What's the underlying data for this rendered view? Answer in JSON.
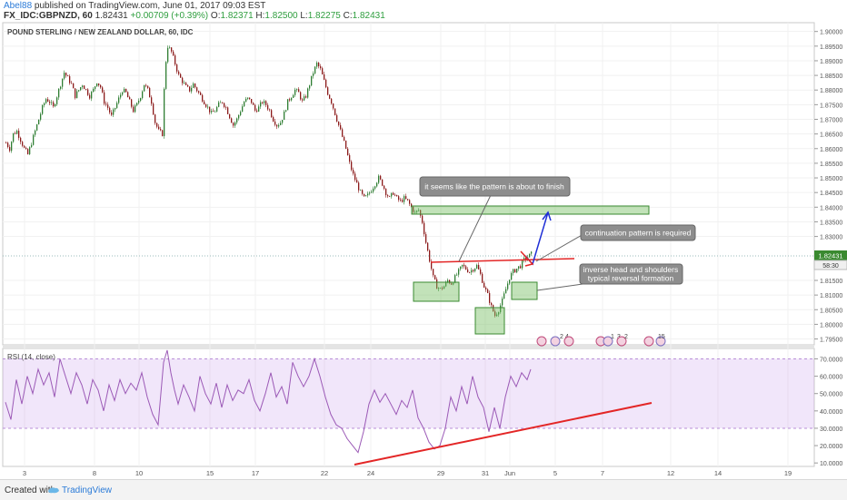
{
  "header": {
    "author": "Abel88",
    "published_text": "published on TradingView.com, June 01, 2017 09:03 EST",
    "symbol": "FX_IDC:GBPNZD, 60",
    "last": "1.82431",
    "change": "+0.00709 (+0.39%)",
    "o_label": "O:",
    "o": "1.82371",
    "h_label": "H:",
    "h": "1.82500",
    "l_label": "L:",
    "l": "1.82275",
    "c_label": "C:",
    "c": "1.82431"
  },
  "chart_data": [
    {
      "type": "candlestick",
      "title": "POUND STERLING / NEW ZEALAND DOLLAR, 60, IDC",
      "ylim": [
        1.793,
        1.903
      ],
      "y_ticks": [
        "1.90000",
        "1.89500",
        "1.89000",
        "1.88500",
        "1.88000",
        "1.87500",
        "1.87000",
        "1.86500",
        "1.86000",
        "1.85500",
        "1.85000",
        "1.84500",
        "1.84000",
        "1.83500",
        "1.83000",
        "1.81500",
        "1.81000",
        "1.80500",
        "1.80000",
        "1.79500"
      ],
      "price_labels": [
        "1.82431",
        "58:30"
      ],
      "x_ticks": [
        "3",
        "8",
        "10",
        "15",
        "17",
        "22",
        "24",
        "29",
        "31",
        "Jun",
        "5",
        "7",
        "12",
        "14",
        "19"
      ],
      "price_path": [
        [
          0,
          1.862
        ],
        [
          4,
          1.86
        ],
        [
          8,
          1.865
        ],
        [
          12,
          1.866
        ],
        [
          16,
          1.863
        ],
        [
          20,
          1.86
        ],
        [
          24,
          1.858
        ],
        [
          28,
          1.862
        ],
        [
          32,
          1.866
        ],
        [
          36,
          1.87
        ],
        [
          40,
          1.874
        ],
        [
          44,
          1.877
        ],
        [
          48,
          1.876
        ],
        [
          52,
          1.874
        ],
        [
          56,
          1.878
        ],
        [
          60,
          1.882
        ],
        [
          64,
          1.886
        ],
        [
          68,
          1.884
        ],
        [
          72,
          1.882
        ],
        [
          76,
          1.878
        ],
        [
          80,
          1.88
        ],
        [
          84,
          1.882
        ],
        [
          88,
          1.88
        ],
        [
          92,
          1.878
        ],
        [
          96,
          1.88
        ],
        [
          100,
          1.883
        ],
        [
          104,
          1.881
        ],
        [
          108,
          1.876
        ],
        [
          112,
          1.874
        ],
        [
          116,
          1.871
        ],
        [
          120,
          1.874
        ],
        [
          124,
          1.877
        ],
        [
          128,
          1.88
        ],
        [
          132,
          1.879
        ],
        [
          136,
          1.876
        ],
        [
          140,
          1.873
        ],
        [
          144,
          1.875
        ],
        [
          148,
          1.878
        ],
        [
          152,
          1.882
        ],
        [
          156,
          1.88
        ],
        [
          160,
          1.876
        ],
        [
          164,
          1.869
        ],
        [
          168,
          1.866
        ],
        [
          172,
          1.865
        ],
        [
          174,
          1.88
        ],
        [
          176,
          1.89
        ],
        [
          178,
          1.895
        ],
        [
          182,
          1.893
        ],
        [
          186,
          1.889
        ],
        [
          190,
          1.885
        ],
        [
          194,
          1.883
        ],
        [
          198,
          1.881
        ],
        [
          202,
          1.88
        ],
        [
          206,
          1.882
        ],
        [
          210,
          1.88
        ],
        [
          214,
          1.878
        ],
        [
          218,
          1.876
        ],
        [
          222,
          1.874
        ],
        [
          226,
          1.872
        ],
        [
          230,
          1.873
        ],
        [
          234,
          1.875
        ],
        [
          238,
          1.876
        ],
        [
          242,
          1.874
        ],
        [
          246,
          1.871
        ],
        [
          250,
          1.868
        ],
        [
          254,
          1.87
        ],
        [
          258,
          1.873
        ],
        [
          262,
          1.876
        ],
        [
          266,
          1.877
        ],
        [
          270,
          1.876
        ],
        [
          274,
          1.873
        ],
        [
          278,
          1.874
        ],
        [
          282,
          1.876
        ],
        [
          286,
          1.875
        ],
        [
          290,
          1.873
        ],
        [
          294,
          1.87
        ],
        [
          298,
          1.868
        ],
        [
          302,
          1.869
        ],
        [
          306,
          1.872
        ],
        [
          310,
          1.876
        ],
        [
          314,
          1.878
        ],
        [
          318,
          1.88
        ],
        [
          322,
          1.879
        ],
        [
          326,
          1.876
        ],
        [
          330,
          1.878
        ],
        [
          334,
          1.882
        ],
        [
          338,
          1.886
        ],
        [
          342,
          1.889
        ],
        [
          346,
          1.887
        ],
        [
          350,
          1.883
        ],
        [
          354,
          1.879
        ],
        [
          358,
          1.876
        ],
        [
          362,
          1.872
        ],
        [
          366,
          1.868
        ],
        [
          370,
          1.864
        ],
        [
          374,
          1.86
        ],
        [
          378,
          1.855
        ],
        [
          382,
          1.851
        ],
        [
          386,
          1.848
        ],
        [
          390,
          1.845
        ],
        [
          394,
          1.843
        ],
        [
          398,
          1.844
        ],
        [
          402,
          1.846
        ],
        [
          406,
          1.848
        ],
        [
          410,
          1.85
        ],
        [
          414,
          1.848
        ],
        [
          418,
          1.845
        ],
        [
          422,
          1.843
        ],
        [
          426,
          1.845
        ],
        [
          430,
          1.843
        ],
        [
          434,
          1.842
        ],
        [
          438,
          1.843
        ],
        [
          442,
          1.842
        ],
        [
          446,
          1.84
        ],
        [
          450,
          1.838
        ],
        [
          454,
          1.839
        ],
        [
          458,
          1.835
        ],
        [
          462,
          1.828
        ],
        [
          466,
          1.822
        ],
        [
          470,
          1.816
        ],
        [
          474,
          1.813
        ],
        [
          478,
          1.812
        ],
        [
          482,
          1.813
        ],
        [
          486,
          1.815
        ],
        [
          490,
          1.814
        ],
        [
          494,
          1.816
        ],
        [
          498,
          1.818
        ],
        [
          502,
          1.82
        ],
        [
          506,
          1.819
        ],
        [
          510,
          1.818
        ],
        [
          514,
          1.819
        ],
        [
          518,
          1.82
        ],
        [
          522,
          1.817
        ],
        [
          526,
          1.813
        ],
        [
          530,
          1.81
        ],
        [
          534,
          1.806
        ],
        [
          538,
          1.803
        ],
        [
          542,
          1.805
        ],
        [
          546,
          1.808
        ],
        [
          550,
          1.812
        ],
        [
          554,
          1.816
        ],
        [
          558,
          1.818
        ],
        [
          562,
          1.819
        ],
        [
          566,
          1.82
        ],
        [
          570,
          1.822
        ],
        [
          574,
          1.823
        ],
        [
          578,
          1.824
        ]
      ],
      "annotations": [
        {
          "text": "it seems like the pattern is about to finish"
        },
        {
          "text": "continuation pattern is required"
        },
        {
          "text": "inverse head and shoulders"
        },
        {
          "text": "typical reversal formation"
        }
      ],
      "event_icons": [
        "2",
        "4",
        "1",
        "3",
        "2",
        "15"
      ]
    },
    {
      "type": "line",
      "title": "RSI (14, close)",
      "ylim": [
        8,
        76
      ],
      "y_ticks": [
        "70.0000",
        "60.0000",
        "50.0000",
        "40.0000",
        "30.0000",
        "20.0000",
        "10.0000"
      ],
      "band": [
        30,
        70
      ],
      "rsi_path": [
        [
          0,
          45
        ],
        [
          6,
          35
        ],
        [
          12,
          58
        ],
        [
          18,
          44
        ],
        [
          24,
          60
        ],
        [
          30,
          50
        ],
        [
          36,
          64
        ],
        [
          42,
          55
        ],
        [
          48,
          62
        ],
        [
          54,
          48
        ],
        [
          60,
          70
        ],
        [
          66,
          60
        ],
        [
          72,
          50
        ],
        [
          78,
          62
        ],
        [
          84,
          55
        ],
        [
          90,
          44
        ],
        [
          96,
          58
        ],
        [
          102,
          52
        ],
        [
          108,
          40
        ],
        [
          114,
          55
        ],
        [
          120,
          46
        ],
        [
          126,
          58
        ],
        [
          132,
          50
        ],
        [
          138,
          56
        ],
        [
          144,
          52
        ],
        [
          150,
          62
        ],
        [
          156,
          48
        ],
        [
          162,
          38
        ],
        [
          168,
          32
        ],
        [
          174,
          68
        ],
        [
          178,
          75
        ],
        [
          182,
          62
        ],
        [
          186,
          52
        ],
        [
          190,
          44
        ],
        [
          196,
          55
        ],
        [
          202,
          48
        ],
        [
          208,
          40
        ],
        [
          214,
          60
        ],
        [
          220,
          50
        ],
        [
          226,
          44
        ],
        [
          232,
          56
        ],
        [
          238,
          42
        ],
        [
          244,
          55
        ],
        [
          250,
          46
        ],
        [
          256,
          52
        ],
        [
          262,
          50
        ],
        [
          268,
          58
        ],
        [
          274,
          46
        ],
        [
          280,
          40
        ],
        [
          286,
          50
        ],
        [
          292,
          62
        ],
        [
          298,
          48
        ],
        [
          304,
          54
        ],
        [
          310,
          44
        ],
        [
          316,
          68
        ],
        [
          322,
          60
        ],
        [
          328,
          54
        ],
        [
          334,
          60
        ],
        [
          340,
          70
        ],
        [
          346,
          60
        ],
        [
          352,
          48
        ],
        [
          358,
          38
        ],
        [
          364,
          32
        ],
        [
          370,
          30
        ],
        [
          376,
          24
        ],
        [
          382,
          20
        ],
        [
          388,
          16
        ],
        [
          394,
          28
        ],
        [
          400,
          44
        ],
        [
          406,
          52
        ],
        [
          412,
          45
        ],
        [
          418,
          50
        ],
        [
          424,
          44
        ],
        [
          430,
          38
        ],
        [
          436,
          46
        ],
        [
          442,
          42
        ],
        [
          448,
          52
        ],
        [
          454,
          36
        ],
        [
          460,
          30
        ],
        [
          466,
          22
        ],
        [
          472,
          18
        ],
        [
          478,
          20
        ],
        [
          484,
          30
        ],
        [
          490,
          48
        ],
        [
          496,
          40
        ],
        [
          502,
          54
        ],
        [
          508,
          44
        ],
        [
          514,
          60
        ],
        [
          520,
          48
        ],
        [
          526,
          42
        ],
        [
          532,
          28
        ],
        [
          538,
          42
        ],
        [
          544,
          30
        ],
        [
          550,
          48
        ],
        [
          556,
          60
        ],
        [
          562,
          54
        ],
        [
          568,
          62
        ],
        [
          574,
          58
        ],
        [
          578,
          64
        ]
      ]
    }
  ],
  "footer": {
    "created_with": "Created with",
    "brand": "TradingView"
  }
}
